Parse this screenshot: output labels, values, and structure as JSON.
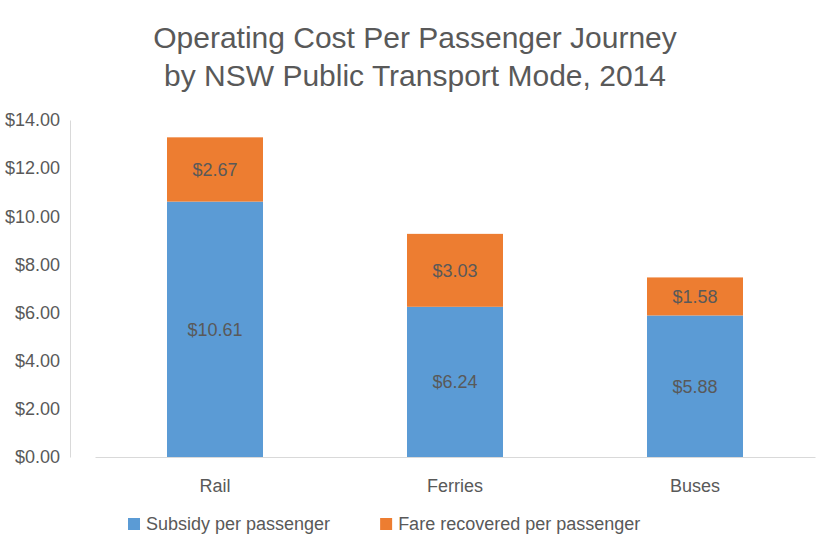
{
  "chart_data": {
    "type": "bar",
    "stacked": true,
    "data_labels": true,
    "grid": false,
    "legend": "bottom",
    "title": "Operating Cost Per Passenger Journey by NSW Public Transport Mode, 2014",
    "categories": [
      "Rail",
      "Ferries",
      "Buses"
    ],
    "series": [
      {
        "name": "Subsidy per passenger",
        "color": "#5b9bd5",
        "values": [
          10.61,
          6.24,
          5.88
        ],
        "value_labels": [
          "$10.61",
          "$6.24",
          "$5.88"
        ]
      },
      {
        "name": "Fare recovered per passenger",
        "color": "#ed7d31",
        "values": [
          2.67,
          3.03,
          1.58
        ],
        "value_labels": [
          "$2.67",
          "$3.03",
          "$1.58"
        ]
      }
    ],
    "ylim": [
      0,
      14
    ],
    "yticks": [
      {
        "value": 0,
        "label": "$0.00"
      },
      {
        "value": 2,
        "label": "$2.00"
      },
      {
        "value": 4,
        "label": "$4.00"
      },
      {
        "value": 6,
        "label": "$6.00"
      },
      {
        "value": 8,
        "label": "$8.00"
      },
      {
        "value": 10,
        "label": "$10.00"
      },
      {
        "value": 12,
        "label": "$12.00"
      },
      {
        "value": 14,
        "label": "$14.00"
      }
    ]
  }
}
